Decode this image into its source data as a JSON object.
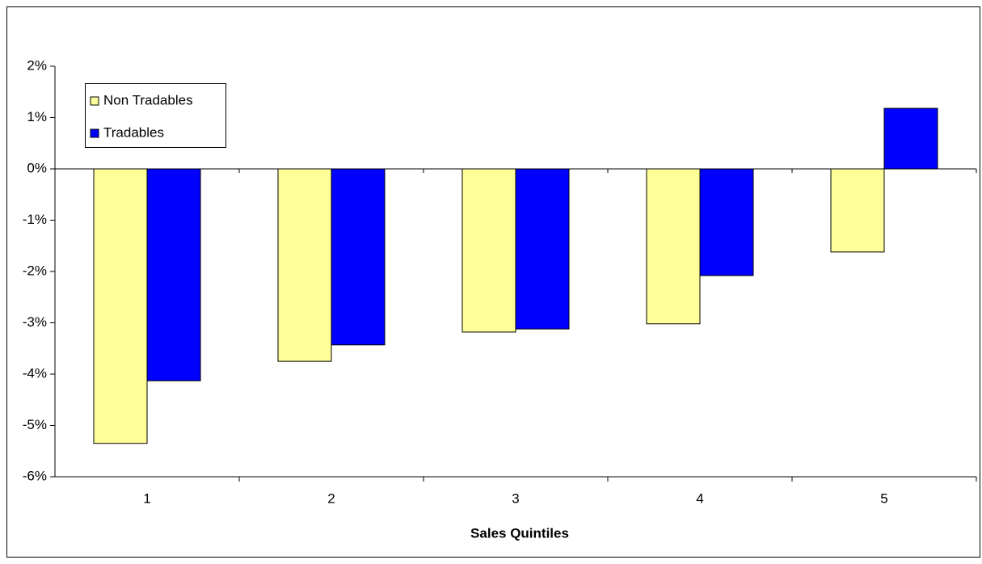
{
  "chart_data": {
    "type": "bar",
    "x_label": "Sales Quintiles",
    "categories": [
      "1",
      "2",
      "3",
      "4",
      "5"
    ],
    "series": [
      {
        "name": "Non Tradables",
        "color": "#FFFF99",
        "values": [
          -5.35,
          -3.75,
          -3.18,
          -3.02,
          -1.62
        ]
      },
      {
        "name": "Tradables",
        "color": "#0000FF",
        "values": [
          -4.13,
          -3.43,
          -3.12,
          -2.08,
          1.18
        ]
      }
    ],
    "ylim": [
      -6,
      2
    ],
    "yticks": [
      {
        "value": -6,
        "label": "-6%"
      },
      {
        "value": -5,
        "label": "-5%"
      },
      {
        "value": -4,
        "label": "-4%"
      },
      {
        "value": -3,
        "label": "-3%"
      },
      {
        "value": -2,
        "label": "-2%"
      },
      {
        "value": -1,
        "label": "-1%"
      },
      {
        "value": 0,
        "label": "0%"
      },
      {
        "value": 1,
        "label": "1%"
      },
      {
        "value": 2,
        "label": "2%"
      }
    ],
    "legend": "upper left"
  }
}
